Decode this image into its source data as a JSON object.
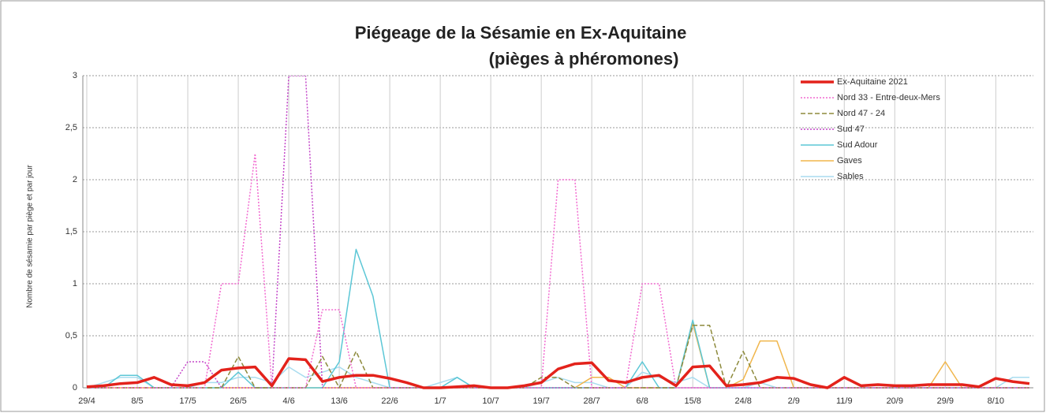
{
  "chart_data": {
    "type": "line",
    "title": [
      "Piégeage de la Sésamie en Ex-Aquitaine",
      "(pièges à phéromones)"
    ],
    "y_label": "Nombre de sésamie par piège et par jour",
    "categories": [
      "29/4",
      null,
      null,
      "8/5",
      null,
      null,
      "17/5",
      null,
      null,
      "26/5",
      null,
      null,
      "4/6",
      null,
      null,
      "13/6",
      null,
      null,
      "22/6",
      null,
      null,
      "1/7",
      null,
      null,
      "10/7",
      null,
      null,
      "19/7",
      null,
      null,
      "28/7",
      null,
      null,
      "6/8",
      null,
      null,
      "15/8",
      null,
      null,
      "24/8",
      null,
      null,
      "2/9",
      null,
      null,
      "11/9",
      null,
      null,
      "20/9",
      null,
      null,
      "29/9",
      null,
      null,
      "8/10",
      null,
      null
    ],
    "ylim": [
      0,
      3
    ],
    "yticks": [
      0,
      {
        "value": 0.5,
        "label": "0,5"
      },
      1,
      {
        "value": 1.5,
        "label": "1,5"
      },
      2,
      {
        "value": 2.5,
        "label": "2,5"
      },
      3
    ],
    "grid": true,
    "legend": "top-right",
    "series": [
      {
        "name": "Ex-Aquitaine 2021",
        "color": "#e3221b",
        "dash": "solid",
        "width": 3.5,
        "values": [
          0.01,
          0.02,
          0.04,
          0.05,
          0.1,
          0.03,
          0.02,
          0.05,
          0.17,
          0.19,
          0.2,
          0.02,
          0.28,
          0.27,
          0.06,
          0.1,
          0.12,
          0.12,
          0.09,
          0.05,
          0,
          0,
          0.01,
          0.02,
          0,
          0,
          0.02,
          0.05,
          0.18,
          0.23,
          0.24,
          0.07,
          0.05,
          0.1,
          0.12,
          0.02,
          0.2,
          0.21,
          0.02,
          0.03,
          0.05,
          0.1,
          0.09,
          0.03,
          0,
          0.1,
          0.02,
          0.03,
          0.02,
          0.02,
          0.03,
          0.03,
          0.03,
          0.01,
          0.09,
          0.06,
          0.04
        ]
      },
      {
        "name": "Nord 33 - Entre-deux-Mers",
        "color": "#f26ad0",
        "dash": "dotted",
        "width": 1.5,
        "values": [
          0,
          0,
          0,
          0,
          0,
          0,
          0,
          0,
          1,
          1,
          2.25,
          0,
          0,
          0,
          0.75,
          0.75,
          0,
          0,
          0,
          0,
          0,
          0,
          0,
          0,
          0,
          0,
          0,
          0,
          2,
          2,
          0,
          0,
          0,
          1,
          1,
          0,
          0,
          0,
          0,
          0,
          0,
          0,
          0,
          0,
          0,
          0,
          0,
          0,
          0,
          0,
          0,
          0,
          0,
          0,
          0,
          0,
          0
        ]
      },
      {
        "name": "Nord 47 - 24",
        "color": "#8d8a3c",
        "dash": "dashed",
        "width": 1.5,
        "values": [
          0,
          0,
          0,
          0,
          0,
          0,
          0,
          0,
          0,
          0.3,
          0,
          0,
          0,
          0,
          0.3,
          0,
          0.35,
          0,
          0,
          0,
          0,
          0,
          0,
          0,
          0,
          0,
          0,
          0.1,
          0.1,
          0,
          0,
          0,
          0,
          0,
          0,
          0,
          0.6,
          0.6,
          0,
          0.35,
          0,
          0,
          0,
          0,
          0,
          0,
          0,
          0,
          0,
          0,
          0,
          0,
          0,
          0,
          0,
          0,
          0
        ]
      },
      {
        "name": "Sud 47",
        "color": "#c447c9",
        "dash": "dotted",
        "width": 1.5,
        "values": [
          0,
          0,
          0,
          0,
          0,
          0,
          0.25,
          0.25,
          0,
          0,
          0,
          0,
          3,
          3,
          0,
          0,
          0,
          0,
          0,
          0,
          0,
          0,
          0,
          0,
          0,
          0,
          0,
          0,
          0,
          0,
          0,
          0,
          0,
          0,
          0,
          0,
          0,
          0,
          0,
          0,
          0,
          0,
          0,
          0,
          0,
          0,
          0,
          0,
          0,
          0,
          0,
          0,
          0,
          0,
          0,
          0,
          0
        ]
      },
      {
        "name": "Sud Adour",
        "color": "#5cc7d6",
        "dash": "solid",
        "width": 1.5,
        "values": [
          0,
          0,
          0.12,
          0.12,
          0,
          0,
          0,
          0,
          0,
          0.15,
          0,
          0,
          0,
          0,
          0,
          0.25,
          1.33,
          0.88,
          0,
          0,
          0,
          0,
          0.1,
          0,
          0,
          0,
          0,
          0,
          0,
          0,
          0,
          0,
          0,
          0.25,
          0,
          0,
          0.65,
          0,
          0,
          0,
          0,
          0,
          0,
          0,
          0,
          0,
          0,
          0,
          0,
          0,
          0,
          0,
          0,
          0,
          0,
          0,
          0
        ]
      },
      {
        "name": "Gaves",
        "color": "#f0b64c",
        "dash": "solid",
        "width": 1.5,
        "values": [
          0,
          0,
          0,
          0,
          0,
          0,
          0,
          0,
          0,
          0,
          0,
          0,
          0,
          0,
          0,
          0,
          0,
          0,
          0,
          0,
          0,
          0,
          0,
          0,
          0,
          0,
          0,
          0,
          0,
          0,
          0.1,
          0.1,
          0,
          0,
          0,
          0,
          0.62,
          0,
          0,
          0.08,
          0.45,
          0.45,
          0,
          0,
          0,
          0,
          0,
          0,
          0,
          0,
          0,
          0.25,
          0,
          0,
          0,
          0,
          0
        ]
      },
      {
        "name": "Sables",
        "color": "#a9dcef",
        "dash": "solid",
        "width": 1.5,
        "values": [
          0,
          0.05,
          0.1,
          0.1,
          0,
          0,
          0,
          0.05,
          0.05,
          0.1,
          0.1,
          0.05,
          0.2,
          0.1,
          0.15,
          0.2,
          0.1,
          0.05,
          0,
          0,
          0,
          0.05,
          0.1,
          0,
          0,
          0,
          0,
          0.05,
          0.1,
          0.05,
          0.05,
          0,
          0,
          0.15,
          0.1,
          0.05,
          0.1,
          0,
          0,
          0,
          0.05,
          0,
          0,
          0,
          0,
          0,
          0,
          0,
          0,
          0,
          0,
          0,
          0,
          0,
          0,
          0.1,
          0.1
        ]
      }
    ]
  }
}
